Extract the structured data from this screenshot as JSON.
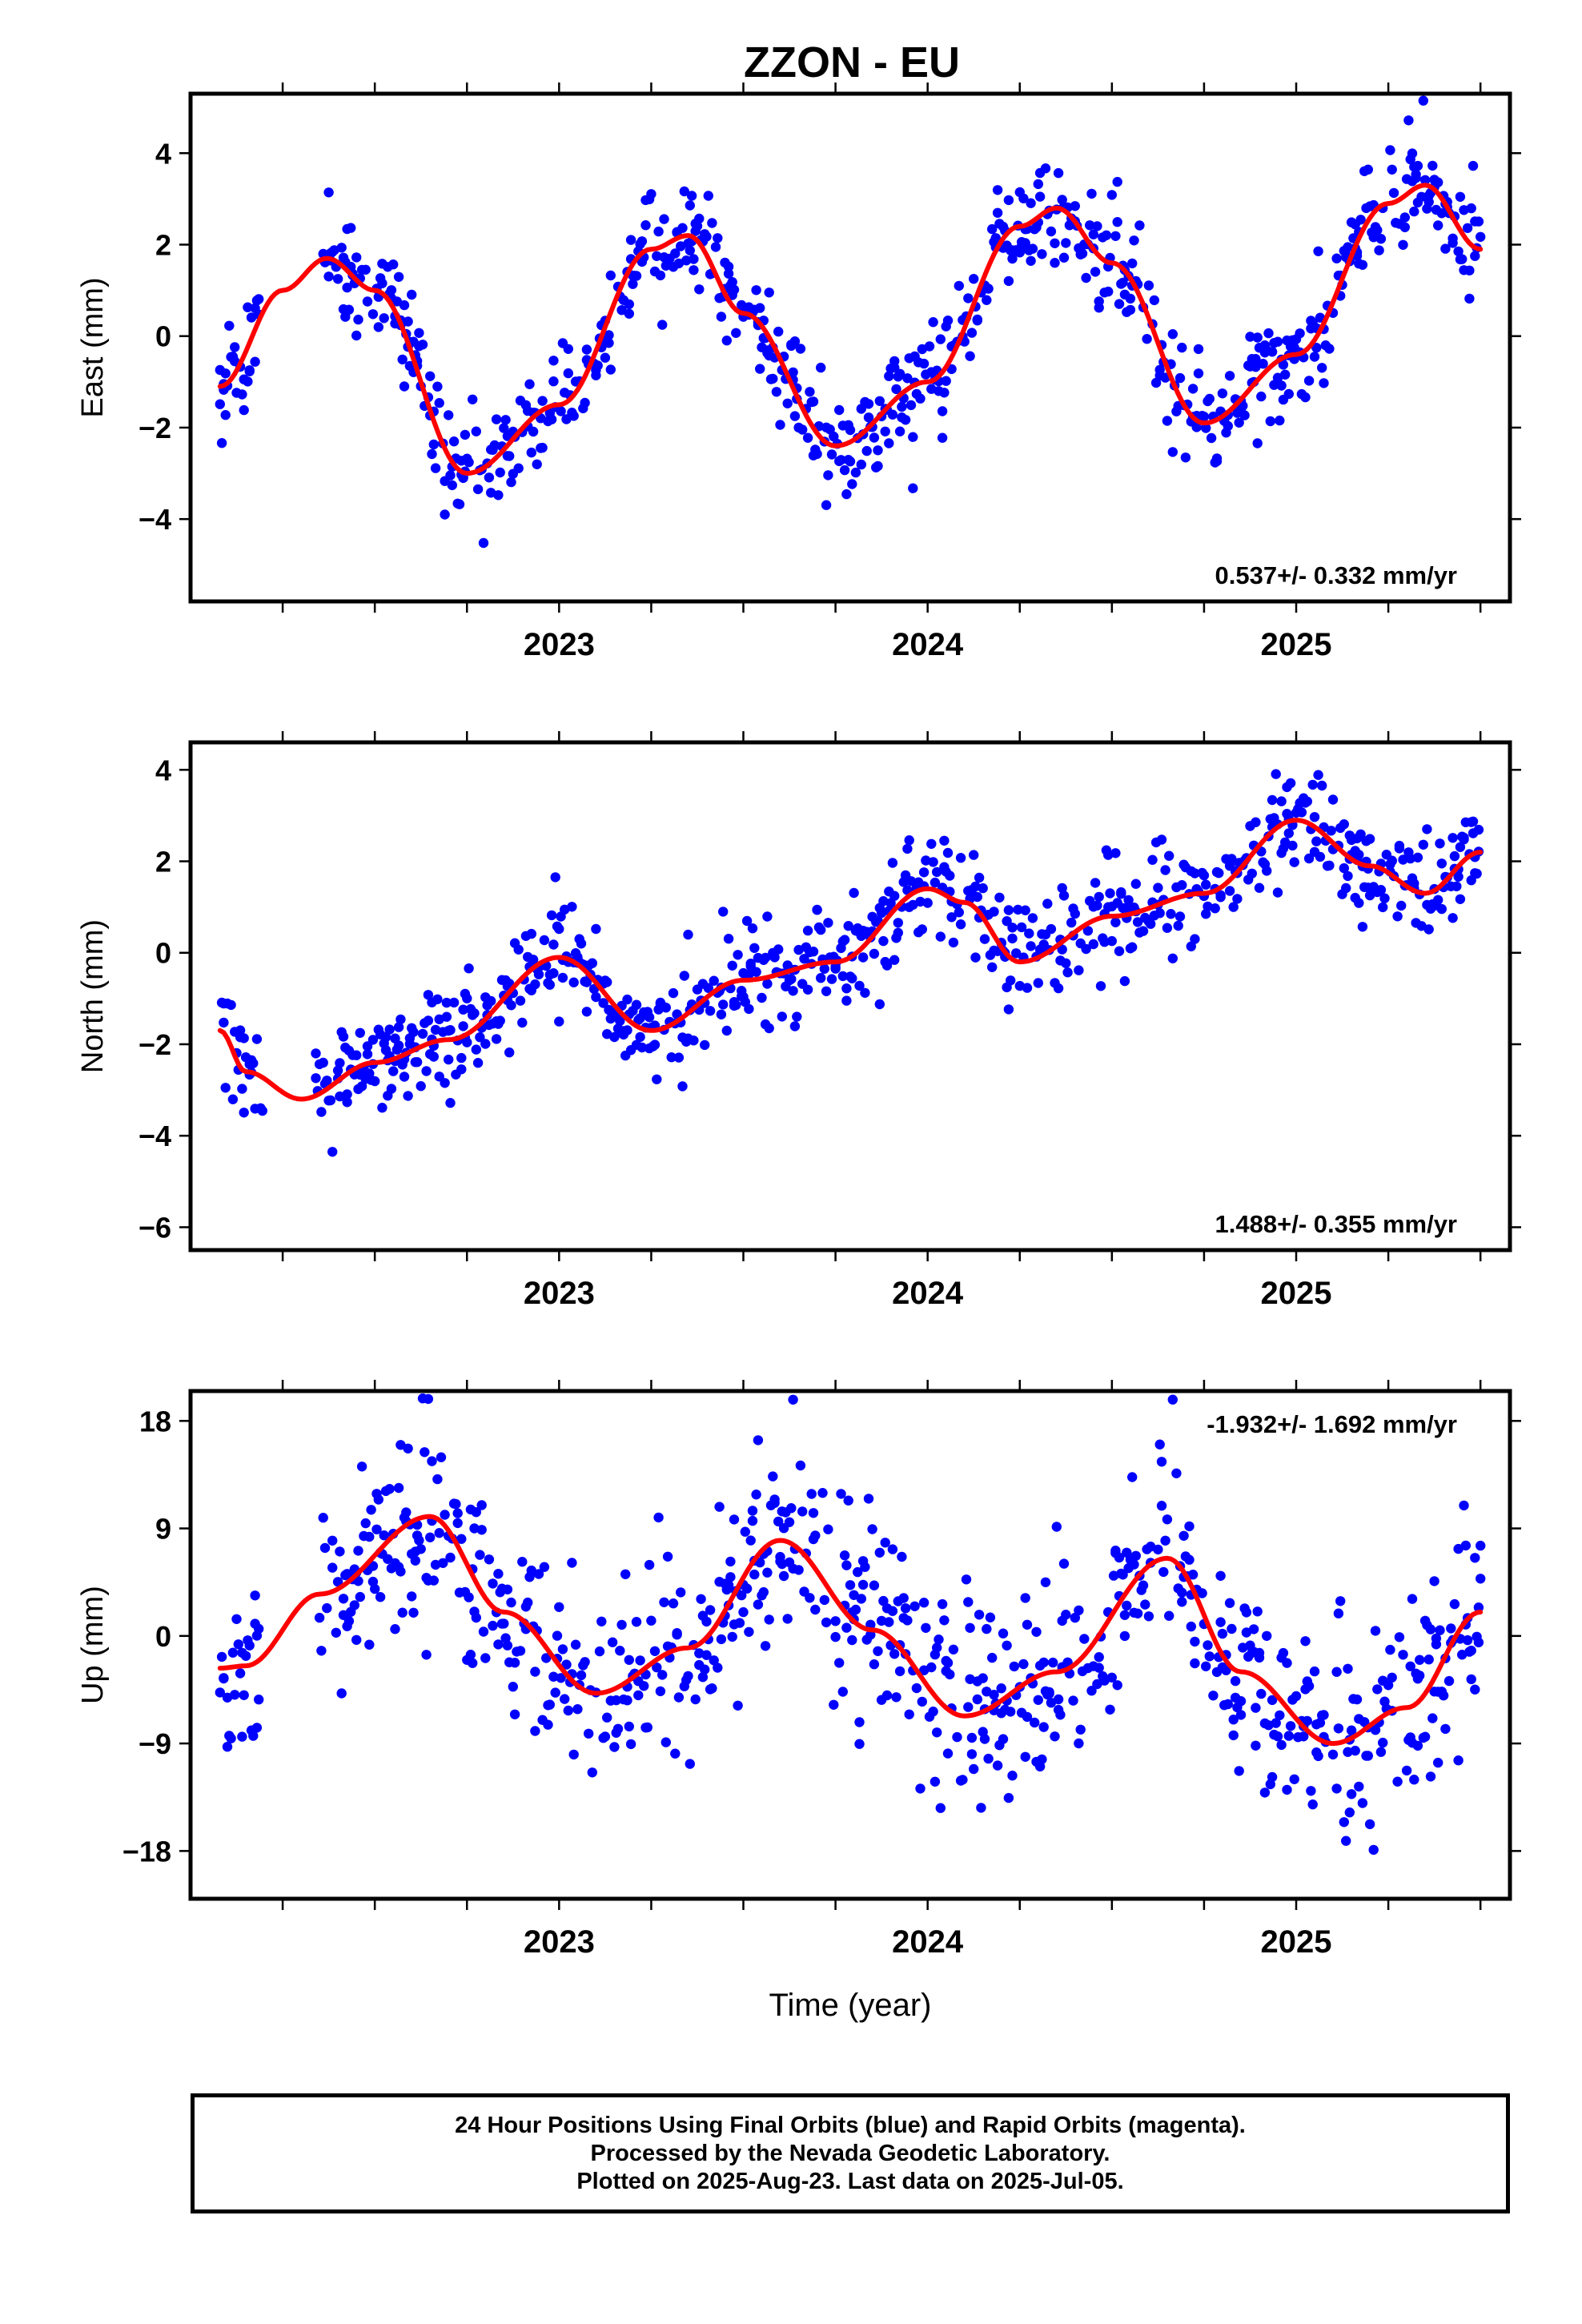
{
  "title": "ZZON - EU",
  "colors": {
    "points": "#0000ff",
    "fit": "#ff0000",
    "frame": "#000000"
  },
  "chart_data": [
    {
      "type": "scatter",
      "component": "east",
      "ylabel": "East (mm)",
      "xlabel": "",
      "ylim": [
        -5.8,
        5.3
      ],
      "xlim": [
        2022.0,
        2025.58
      ],
      "yticks": [
        4,
        2,
        0,
        -2,
        -4
      ],
      "ytick_labels": [
        "4",
        "2",
        "0",
        "−2",
        "−4"
      ],
      "xticks": [
        2023,
        2024,
        2025
      ],
      "xtick_labels": [
        "2023",
        "2024",
        "2025"
      ],
      "rate_label": "0.537+/- 0.332 mm/yr",
      "rate_position": "bottom-right",
      "fit_curve": {
        "x": [
          2022.08,
          2022.25,
          2022.37,
          2022.5,
          2022.75,
          2023.0,
          2023.25,
          2023.35,
          2023.5,
          2023.75,
          2024.0,
          2024.25,
          2024.35,
          2024.5,
          2024.75,
          2025.0,
          2025.25,
          2025.35,
          2025.5
        ],
        "y": [
          -1.1,
          1.0,
          1.7,
          1.0,
          -3.0,
          -1.5,
          1.9,
          2.2,
          0.5,
          -2.4,
          -1.0,
          2.4,
          2.8,
          1.6,
          -1.9,
          -0.4,
          2.9,
          3.3,
          1.9
        ]
      },
      "observations": {
        "sample_step_years": 0.005,
        "amplitude_x_mm": 0.55,
        "amplitude_y_mm": 0.5,
        "gaps": [
          [
            2022.19,
            2022.36
          ]
        ]
      }
    },
    {
      "type": "scatter",
      "component": "north",
      "ylabel": "North (mm)",
      "xlabel": "",
      "ylim": [
        -6.5,
        4.6
      ],
      "xlim": [
        2022.0,
        2025.58
      ],
      "yticks": [
        4,
        2,
        0,
        -2,
        -4,
        -6
      ],
      "ytick_labels": [
        "4",
        "2",
        "0",
        "−2",
        "−4",
        "−6"
      ],
      "xticks": [
        2023,
        2024,
        2025
      ],
      "xtick_labels": [
        "2023",
        "2024",
        "2025"
      ],
      "rate_label": "1.488+/- 0.355 mm/yr",
      "rate_position": "bottom-right",
      "fit_curve": {
        "x": [
          2022.08,
          2022.15,
          2022.3,
          2022.5,
          2022.7,
          2023.0,
          2023.25,
          2023.5,
          2023.75,
          2024.0,
          2024.1,
          2024.25,
          2024.5,
          2024.75,
          2025.0,
          2025.2,
          2025.35,
          2025.5
        ],
        "y": [
          -1.7,
          -2.6,
          -3.2,
          -2.4,
          -1.9,
          -0.1,
          -1.7,
          -0.6,
          -0.2,
          1.4,
          1.1,
          -0.2,
          0.8,
          1.3,
          2.9,
          1.9,
          1.3,
          2.2
        ]
      },
      "observations": {
        "sample_step_years": 0.005,
        "amplitude_x_mm": 0.55,
        "amplitude_y_mm": 0.5,
        "gaps": [
          [
            2022.2,
            2022.34
          ]
        ]
      }
    },
    {
      "type": "scatter",
      "component": "up",
      "ylabel": "Up (mm)",
      "xlabel": "Time (year)",
      "ylim": [
        -22,
        20.5
      ],
      "xlim": [
        2022.0,
        2025.58
      ],
      "yticks": [
        18,
        9,
        0,
        -9,
        -18
      ],
      "ytick_labels": [
        "18",
        "9",
        "0",
        "−9",
        "−18"
      ],
      "xticks": [
        2023,
        2024,
        2025
      ],
      "xtick_labels": [
        "2023",
        "2024",
        "2025"
      ],
      "rate_label": "-1.932+/- 1.692 mm/yr",
      "rate_position": "top-right",
      "fit_curve": {
        "x": [
          2022.08,
          2022.15,
          2022.35,
          2022.65,
          2022.85,
          2023.1,
          2023.35,
          2023.6,
          2023.85,
          2024.1,
          2024.35,
          2024.65,
          2024.85,
          2025.1,
          2025.3,
          2025.5
        ],
        "y": [
          -2.7,
          -2.5,
          3.5,
          10.0,
          2.0,
          -4.8,
          -1.0,
          8.0,
          0.5,
          -6.7,
          -3.0,
          6.5,
          -3.0,
          -9.0,
          -6.0,
          2.0
        ]
      },
      "observations": {
        "sample_step_years": 0.005,
        "amplitude_x_mm": 4.2,
        "amplitude_y_mm": 3.8,
        "gaps": [
          [
            2022.19,
            2022.35
          ]
        ]
      }
    }
  ],
  "caption": {
    "line1": "24 Hour Positions Using Final Orbits (blue) and Rapid Orbits (magenta).",
    "line2": "Processed by the Nevada Geodetic Laboratory.",
    "line3": "Plotted on 2025-Aug-23. Last data on 2025-Jul-05."
  }
}
